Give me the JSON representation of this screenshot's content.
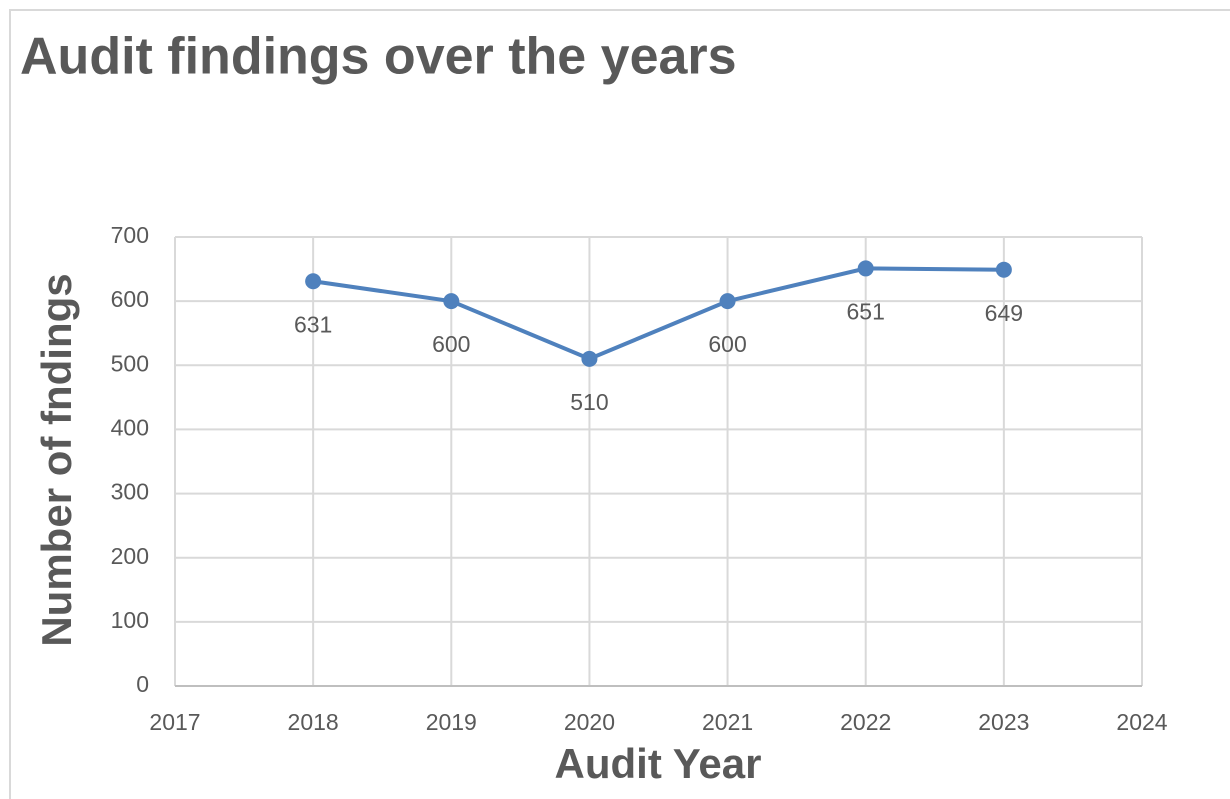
{
  "chart_data": {
    "type": "line",
    "title": "Audit findings over the years",
    "x_label": "Audit Year",
    "y_label": "Number of fndings",
    "x": [
      2018,
      2019,
      2020,
      2021,
      2022,
      2023
    ],
    "values": [
      631,
      600,
      510,
      600,
      651,
      649
    ],
    "color": "#4f81bd",
    "xlim": [
      2017,
      2024
    ],
    "xticks": [
      2017,
      2018,
      2019,
      2020,
      2021,
      2022,
      2023,
      2024
    ],
    "ylim": [
      0,
      700
    ],
    "yticks": [
      0,
      100,
      200,
      300,
      400,
      500,
      600,
      700
    ],
    "grid": true
  }
}
